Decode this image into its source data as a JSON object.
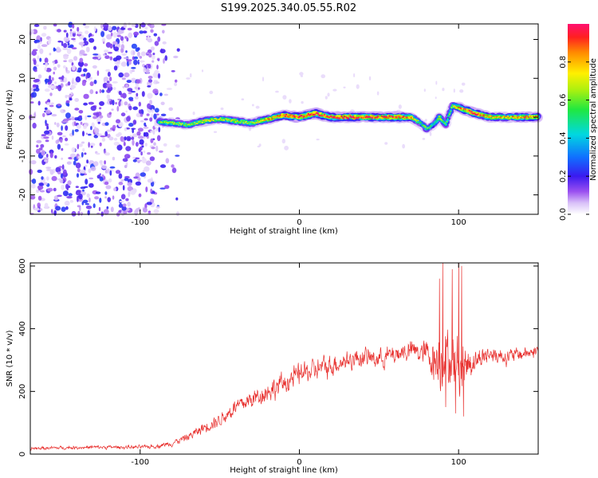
{
  "title": "S199.2025.340.05.55.R02",
  "chart_data": [
    {
      "type": "heatmap",
      "xlabel": "Height of straight line (km)",
      "ylabel": "Frequency (Hz)",
      "xlim": [
        -169,
        150
      ],
      "ylim": [
        -25,
        24
      ],
      "xticks": [
        -100,
        0,
        100
      ],
      "yticks": [
        -20,
        -10,
        0,
        10,
        20
      ],
      "colorbar": {
        "label": "Normalized spectral amplitude",
        "range": [
          0,
          1
        ],
        "ticks": [
          "0.0",
          "0.2",
          "0.4",
          "0.6",
          "0.8"
        ],
        "tick_values": [
          0.0,
          0.2,
          0.4,
          0.6,
          0.8
        ]
      },
      "noise_region": [
        -169,
        -88
      ],
      "ridge": {
        "x": [
          -88,
          -80,
          -70,
          -60,
          -50,
          -40,
          -30,
          -20,
          -10,
          0,
          10,
          20,
          30,
          40,
          50,
          60,
          70,
          76,
          80,
          84,
          88,
          92,
          96,
          100,
          110,
          120,
          130,
          140,
          150
        ],
        "freq": [
          -1.2,
          -1.5,
          -2,
          -1,
          -0.5,
          -1,
          -1.5,
          -0.5,
          0.5,
          0,
          1,
          0,
          0,
          0,
          0,
          0,
          0,
          -1.5,
          -3,
          -2,
          0,
          -2,
          3,
          2.5,
          1,
          0,
          0,
          0,
          0
        ],
        "amp": [
          0.5,
          0.55,
          0.5,
          0.6,
          0.55,
          0.6,
          0.55,
          0.7,
          0.85,
          0.95,
          0.9,
          0.9,
          0.9,
          0.9,
          0.85,
          0.9,
          0.8,
          0.4,
          0.5,
          0.3,
          0.6,
          0.4,
          0.5,
          0.8,
          0.9,
          0.7,
          0.7,
          0.8,
          0.8
        ]
      }
    },
    {
      "type": "line",
      "xlabel": "Height of straight line (km)",
      "ylabel": "SNR (10 * v/v)",
      "xlim": [
        -169,
        150
      ],
      "ylim": [
        0,
        610
      ],
      "xticks": [
        -100,
        0,
        100
      ],
      "yticks": [
        0,
        200,
        400,
        600
      ],
      "color": "#e8302e",
      "series": [
        {
          "name": "SNR",
          "x": [
            -169,
            -150,
            -130,
            -110,
            -100,
            -90,
            -80,
            -70,
            -60,
            -50,
            -40,
            -30,
            -20,
            -10,
            0,
            10,
            20,
            30,
            40,
            50,
            60,
            70,
            80,
            85,
            90,
            95,
            100,
            105,
            110,
            120,
            130,
            140,
            150
          ],
          "mean": [
            18,
            20,
            22,
            22,
            22,
            25,
            35,
            55,
            85,
            110,
            150,
            175,
            200,
            225,
            255,
            270,
            285,
            300,
            310,
            305,
            320,
            330,
            320,
            300,
            310,
            300,
            280,
            290,
            300,
            320,
            310,
            320,
            330
          ],
          "noise": [
            8,
            9,
            9,
            9,
            9,
            10,
            14,
            20,
            28,
            35,
            45,
            50,
            55,
            55,
            60,
            55,
            55,
            50,
            50,
            50,
            50,
            55,
            70,
            120,
            170,
            130,
            160,
            110,
            60,
            45,
            40,
            35,
            35
          ],
          "spikes": [
            [
              88,
              560
            ],
            [
              90,
              610
            ],
            [
              100,
              610
            ],
            [
              102,
              600
            ],
            [
              96,
              590
            ],
            [
              98,
              130
            ],
            [
              103,
              120
            ],
            [
              92,
              150
            ]
          ]
        }
      ]
    }
  ]
}
